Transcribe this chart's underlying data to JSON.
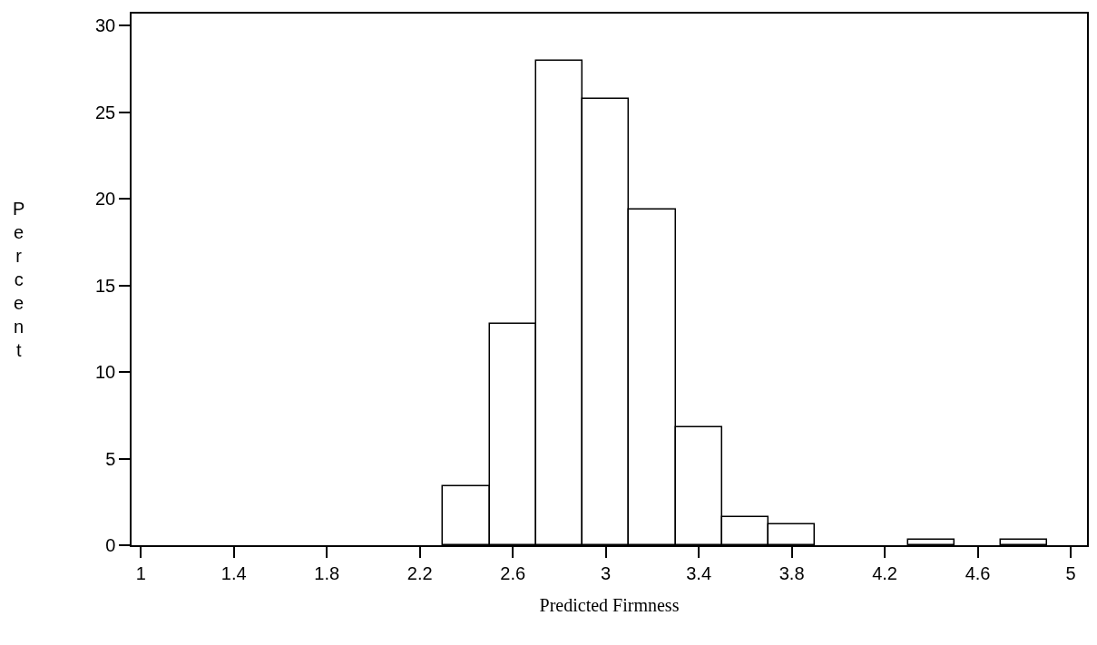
{
  "chart_data": {
    "type": "histogram",
    "xlabel": "Predicted Firmness",
    "ylabel": "Percent",
    "bins": [
      2.3,
      2.5,
      2.7,
      2.9,
      3.1,
      3.3,
      3.5,
      3.7,
      3.9,
      4.1,
      4.3,
      4.5,
      4.7,
      4.9
    ],
    "values": [
      3.4,
      12.8,
      28,
      25.8,
      19.4,
      6.8,
      1.6,
      1.2,
      0,
      0,
      0.3,
      0,
      0.3
    ],
    "color": "#ffffff",
    "xlim": [
      0.96,
      5.07
    ],
    "xticks": [
      1,
      1.4,
      1.8,
      2.2,
      2.6,
      3,
      3.4,
      3.8,
      4.2,
      4.6,
      5
    ],
    "ylim": [
      0,
      30.7
    ],
    "yticks": [
      0,
      5,
      10,
      15,
      20,
      25,
      30
    ]
  }
}
